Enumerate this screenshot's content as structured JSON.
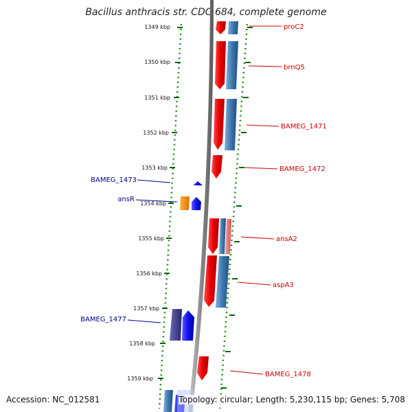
{
  "title": "Bacillus anthracis str. CDC 684, complete genome",
  "ticks": [
    "1349 kbp",
    "1350 kbp",
    "1351 kbp",
    "1352 kbp",
    "1353 kbp",
    "1354 kbp",
    "1355 kbp",
    "1356 kbp",
    "1357 kbp",
    "1358 kbp",
    "1359 kbp"
  ],
  "genes_right": [
    "proC2",
    "brnQ5",
    "BAMEG_1471",
    "BAMEG_1472",
    "ansA2",
    "aspA3",
    "BAMEG_1478"
  ],
  "genes_left": [
    "BAMEG_1473",
    "ansR",
    "BAMEG_1477"
  ],
  "footer": {
    "accession": "Accession: NC_012581",
    "summary": "Topology: circular; Length: 5,230,115 bp; Genes: 5,708"
  },
  "colors": {
    "forward_gene": "#e8000b",
    "reverse_gene": "#1010ee",
    "cds_blue": "#3d78b0",
    "rna_pink": "#e87070",
    "orange_gene": "#ff8c00",
    "dark_purple": "#3a3a8a",
    "right_label": "#cc0000",
    "left_label": "#00008b",
    "tick_green": "#006400"
  }
}
